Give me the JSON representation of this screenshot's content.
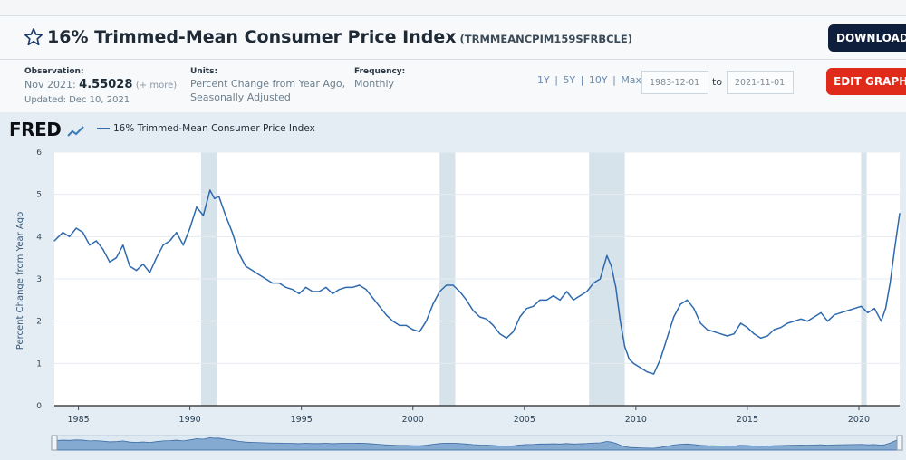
{
  "header": {
    "title": "16% Trimmed-Mean Consumer Price Index",
    "series_id": "(TRMMEANCPIM159SFRBCLE)",
    "download_label": "DOWNLOAD"
  },
  "meta": {
    "observation_label": "Observation:",
    "observation_period": "Nov 2021:",
    "observation_value": "4.55028",
    "observation_more": "(+ more)",
    "updated": "Updated: Dec 10, 2021",
    "units_label": "Units:",
    "units_line1": "Percent Change from Year Ago,",
    "units_line2": "Seasonally Adjusted",
    "frequency_label": "Frequency:",
    "frequency_value": "Monthly",
    "range_1y": "1Y",
    "range_5y": "5Y",
    "range_10y": "10Y",
    "range_max": "Max",
    "sep": "|",
    "start_date": "1983-12-01",
    "to_label": "to",
    "end_date": "2021-11-01",
    "edit_label": "EDIT GRAPH"
  },
  "brand": {
    "logo": "FRED"
  },
  "colors": {
    "series": "#2e69ad",
    "recession": "#d7e3ea",
    "plot_bg": "#ffffff"
  },
  "chart_data": {
    "type": "line",
    "series": [
      {
        "name": "16% Trimmed-Mean Consumer Price Index",
        "points": [
          [
            1983.92,
            3.9
          ],
          [
            1984.3,
            4.1
          ],
          [
            1984.6,
            4.0
          ],
          [
            1984.9,
            4.2
          ],
          [
            1985.2,
            4.1
          ],
          [
            1985.5,
            3.8
          ],
          [
            1985.8,
            3.9
          ],
          [
            1986.1,
            3.7
          ],
          [
            1986.4,
            3.4
          ],
          [
            1986.7,
            3.5
          ],
          [
            1987.0,
            3.8
          ],
          [
            1987.3,
            3.3
          ],
          [
            1987.6,
            3.2
          ],
          [
            1987.9,
            3.35
          ],
          [
            1988.2,
            3.15
          ],
          [
            1988.5,
            3.5
          ],
          [
            1988.8,
            3.8
          ],
          [
            1989.1,
            3.9
          ],
          [
            1989.4,
            4.1
          ],
          [
            1989.7,
            3.8
          ],
          [
            1990.0,
            4.2
          ],
          [
            1990.3,
            4.7
          ],
          [
            1990.6,
            4.5
          ],
          [
            1990.9,
            5.1
          ],
          [
            1991.1,
            4.9
          ],
          [
            1991.3,
            4.95
          ],
          [
            1991.6,
            4.5
          ],
          [
            1991.9,
            4.1
          ],
          [
            1992.2,
            3.6
          ],
          [
            1992.5,
            3.3
          ],
          [
            1992.8,
            3.2
          ],
          [
            1993.1,
            3.1
          ],
          [
            1993.4,
            3.0
          ],
          [
            1993.7,
            2.9
          ],
          [
            1994.0,
            2.9
          ],
          [
            1994.3,
            2.8
          ],
          [
            1994.6,
            2.75
          ],
          [
            1994.9,
            2.65
          ],
          [
            1995.2,
            2.8
          ],
          [
            1995.5,
            2.7
          ],
          [
            1995.8,
            2.7
          ],
          [
            1996.1,
            2.8
          ],
          [
            1996.4,
            2.65
          ],
          [
            1996.7,
            2.75
          ],
          [
            1997.0,
            2.8
          ],
          [
            1997.3,
            2.8
          ],
          [
            1997.6,
            2.85
          ],
          [
            1997.9,
            2.75
          ],
          [
            1998.2,
            2.55
          ],
          [
            1998.5,
            2.35
          ],
          [
            1998.8,
            2.15
          ],
          [
            1999.1,
            2.0
          ],
          [
            1999.4,
            1.9
          ],
          [
            1999.7,
            1.9
          ],
          [
            2000.0,
            1.8
          ],
          [
            2000.3,
            1.75
          ],
          [
            2000.6,
            2.0
          ],
          [
            2000.9,
            2.4
          ],
          [
            2001.2,
            2.7
          ],
          [
            2001.5,
            2.85
          ],
          [
            2001.8,
            2.85
          ],
          [
            2002.1,
            2.7
          ],
          [
            2002.4,
            2.5
          ],
          [
            2002.7,
            2.25
          ],
          [
            2003.0,
            2.1
          ],
          [
            2003.3,
            2.05
          ],
          [
            2003.6,
            1.9
          ],
          [
            2003.9,
            1.7
          ],
          [
            2004.2,
            1.6
          ],
          [
            2004.5,
            1.75
          ],
          [
            2004.8,
            2.1
          ],
          [
            2005.1,
            2.3
          ],
          [
            2005.4,
            2.35
          ],
          [
            2005.7,
            2.5
          ],
          [
            2006.0,
            2.5
          ],
          [
            2006.3,
            2.6
          ],
          [
            2006.6,
            2.5
          ],
          [
            2006.9,
            2.7
          ],
          [
            2007.2,
            2.5
          ],
          [
            2007.5,
            2.6
          ],
          [
            2007.8,
            2.7
          ],
          [
            2008.1,
            2.9
          ],
          [
            2008.4,
            3.0
          ],
          [
            2008.7,
            3.55
          ],
          [
            2008.9,
            3.3
          ],
          [
            2009.1,
            2.8
          ],
          [
            2009.3,
            2.0
          ],
          [
            2009.5,
            1.4
          ],
          [
            2009.7,
            1.1
          ],
          [
            2009.9,
            1.0
          ],
          [
            2010.2,
            0.9
          ],
          [
            2010.5,
            0.8
          ],
          [
            2010.8,
            0.75
          ],
          [
            2011.1,
            1.1
          ],
          [
            2011.4,
            1.6
          ],
          [
            2011.7,
            2.1
          ],
          [
            2012.0,
            2.4
          ],
          [
            2012.3,
            2.5
          ],
          [
            2012.6,
            2.3
          ],
          [
            2012.9,
            1.95
          ],
          [
            2013.2,
            1.8
          ],
          [
            2013.5,
            1.75
          ],
          [
            2013.8,
            1.7
          ],
          [
            2014.1,
            1.65
          ],
          [
            2014.4,
            1.7
          ],
          [
            2014.7,
            1.95
          ],
          [
            2015.0,
            1.85
          ],
          [
            2015.3,
            1.7
          ],
          [
            2015.6,
            1.6
          ],
          [
            2015.9,
            1.65
          ],
          [
            2016.2,
            1.8
          ],
          [
            2016.5,
            1.85
          ],
          [
            2016.8,
            1.95
          ],
          [
            2017.1,
            2.0
          ],
          [
            2017.4,
            2.05
          ],
          [
            2017.7,
            2.0
          ],
          [
            2018.0,
            2.1
          ],
          [
            2018.3,
            2.2
          ],
          [
            2018.6,
            2.0
          ],
          [
            2018.9,
            2.15
          ],
          [
            2019.2,
            2.2
          ],
          [
            2019.5,
            2.25
          ],
          [
            2019.8,
            2.3
          ],
          [
            2020.1,
            2.35
          ],
          [
            2020.4,
            2.2
          ],
          [
            2020.7,
            2.3
          ],
          [
            2021.0,
            2.0
          ],
          [
            2021.2,
            2.3
          ],
          [
            2021.4,
            2.9
          ],
          [
            2021.6,
            3.7
          ],
          [
            2021.83,
            4.55
          ]
        ]
      }
    ],
    "xlim": [
      1983.92,
      2021.83
    ],
    "ylim": [
      0,
      6
    ],
    "yticks": [
      "0",
      "1",
      "2",
      "3",
      "4",
      "5",
      "6"
    ],
    "xticks": [
      "1985",
      "1990",
      "1995",
      "2000",
      "2005",
      "2010",
      "2015",
      "2020"
    ],
    "ylabel": "Percent Change from Year Ago",
    "xlabel": "",
    "grid": true,
    "recessions": [
      [
        1990.5,
        1991.2
      ],
      [
        2001.2,
        2001.9
      ],
      [
        2007.9,
        2009.5
      ],
      [
        2020.1,
        2020.35
      ]
    ]
  }
}
